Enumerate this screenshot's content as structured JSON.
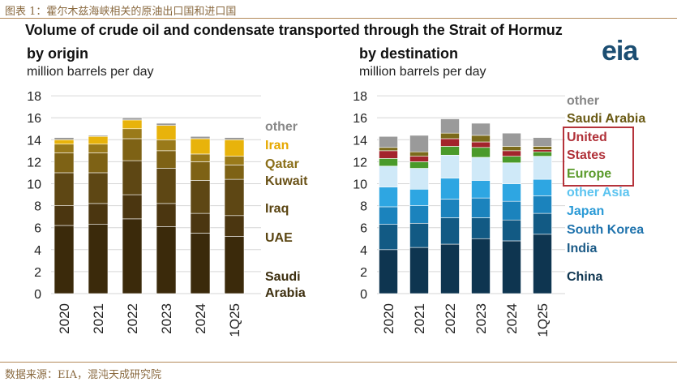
{
  "caption": "图表 1：霍尔木兹海峡相关的原油出口国和进口国",
  "source": "数据来源：EIA，混沌天成研究院",
  "logo_text": "eia",
  "main_title": "Volume of crude oil and condensate transported through the Strait of Hormuz",
  "colors": {
    "origin": [
      "#3b2a0b",
      "#4b3610",
      "#5e4714",
      "#7e6215",
      "#9a7a1a",
      "#e8b30b",
      "#9a9a9a"
    ],
    "destination": [
      "#0e3550",
      "#125a84",
      "#1b83bd",
      "#2ea6e2",
      "#cfe9f8",
      "#4a9a2a",
      "#a3242c",
      "#7b6a1a",
      "#9a9a9a"
    ],
    "origin_label": [
      "#3d2f0f",
      "#5a4512",
      "#5a4512",
      "#6a5218",
      "#8a6e18",
      "#e6a800",
      "#888888"
    ],
    "destination_label": [
      "#0e3550",
      "#1b5a86",
      "#1f73ad",
      "#2a9ad6",
      "#5cc4f0",
      "#5a9a2a",
      "#b03038",
      "#6a5a14",
      "#888888"
    ]
  },
  "chart_data": [
    {
      "type": "bar",
      "stacked": true,
      "title": "by origin",
      "subtitle": "million barrels per day",
      "categories": [
        "2020",
        "2021",
        "2022",
        "2023",
        "2024",
        "1Q25"
      ],
      "ylim": [
        0,
        18
      ],
      "yticks": [
        "0",
        "2",
        "4",
        "6",
        "8",
        "10",
        "12",
        "14",
        "16",
        "18"
      ],
      "series": [
        {
          "name": "Saudi Arabia",
          "values": [
            6.2,
            6.3,
            6.8,
            6.1,
            5.5,
            5.2
          ]
        },
        {
          "name": "UAE",
          "values": [
            1.8,
            1.9,
            2.2,
            2.1,
            1.8,
            1.9
          ]
        },
        {
          "name": "Iraq",
          "values": [
            3.0,
            2.8,
            3.1,
            3.2,
            3.0,
            3.3
          ]
        },
        {
          "name": "Kuwait",
          "values": [
            1.8,
            1.8,
            2.0,
            1.6,
            1.7,
            1.3
          ]
        },
        {
          "name": "Qatar",
          "values": [
            0.8,
            0.8,
            0.9,
            1.0,
            0.7,
            0.8
          ]
        },
        {
          "name": "Iran",
          "values": [
            0.4,
            0.7,
            0.8,
            1.3,
            1.4,
            1.5
          ]
        },
        {
          "name": "other",
          "values": [
            0.2,
            0.1,
            0.2,
            0.2,
            0.2,
            0.2
          ]
        }
      ]
    },
    {
      "type": "bar",
      "stacked": true,
      "title": "by destination",
      "subtitle": "million barrels per day",
      "categories": [
        "2020",
        "2021",
        "2022",
        "2023",
        "2024",
        "1Q25"
      ],
      "ylim": [
        0,
        18
      ],
      "yticks": [
        "0",
        "2",
        "4",
        "6",
        "8",
        "10",
        "12",
        "14",
        "16",
        "18"
      ],
      "series": [
        {
          "name": "China",
          "values": [
            4.0,
            4.2,
            4.5,
            5.0,
            4.8,
            5.4
          ]
        },
        {
          "name": "India",
          "values": [
            2.3,
            2.2,
            2.4,
            1.9,
            1.9,
            1.9
          ]
        },
        {
          "name": "South Korea",
          "values": [
            1.6,
            1.6,
            1.7,
            1.8,
            1.7,
            1.6
          ]
        },
        {
          "name": "Japan",
          "values": [
            1.8,
            1.5,
            1.9,
            1.6,
            1.6,
            1.5
          ]
        },
        {
          "name": "other Asia",
          "values": [
            1.9,
            1.9,
            2.1,
            2.1,
            1.9,
            2.1
          ]
        },
        {
          "name": "Europe",
          "values": [
            0.7,
            0.6,
            0.8,
            0.9,
            0.6,
            0.4
          ]
        },
        {
          "name": "United States",
          "values": [
            0.7,
            0.5,
            0.7,
            0.5,
            0.5,
            0.2
          ]
        },
        {
          "name": "Saudi Arabia",
          "values": [
            0.3,
            0.4,
            0.5,
            0.6,
            0.4,
            0.3
          ]
        },
        {
          "name": "other",
          "values": [
            1.0,
            1.5,
            1.3,
            1.1,
            1.2,
            0.8
          ]
        }
      ]
    }
  ]
}
